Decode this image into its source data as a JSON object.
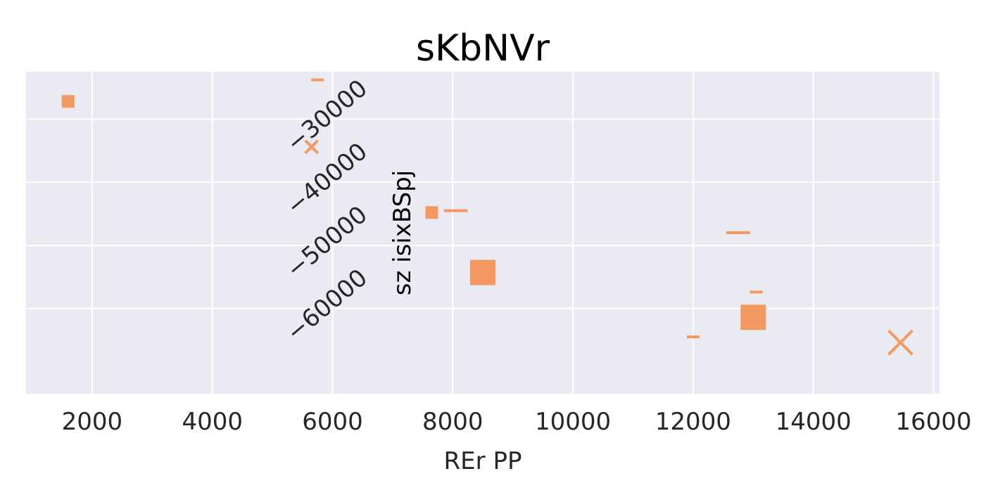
{
  "chart_data": {
    "type": "scatter",
    "title": "sKbNVr",
    "xlabel": "REr PP",
    "ylabel": "sz isixBSpj",
    "xlim": [
      900,
      16100
    ],
    "ylim": [
      -73500,
      -22500
    ],
    "xticks": [
      2000,
      4000,
      6000,
      8000,
      10000,
      12000,
      14000,
      16000
    ],
    "xtick_labels": [
      "2000",
      "4000",
      "6000",
      "8000",
      "10000",
      "12000",
      "14000",
      "16000"
    ],
    "yticks": [
      -30000,
      -40000,
      -50000,
      -60000
    ],
    "ytick_labels": [
      "−30000",
      "−40000",
      "−50000",
      "−60000"
    ],
    "grid": true,
    "background": "#eaeaf2",
    "marker_color": "#f29a62",
    "points": [
      {
        "x": 1600,
        "y": -27200,
        "marker": "square",
        "size": 18
      },
      {
        "x": 5750,
        "y": -23800,
        "marker": "hline",
        "size": 18
      },
      {
        "x": 5650,
        "y": -34400,
        "marker": "x",
        "size": 18
      },
      {
        "x": 7650,
        "y": -44800,
        "marker": "square",
        "size": 18
      },
      {
        "x": 8050,
        "y": -44500,
        "marker": "hline",
        "size": 34
      },
      {
        "x": 12750,
        "y": -48000,
        "marker": "hline",
        "size": 34
      },
      {
        "x": 8500,
        "y": -54300,
        "marker": "square",
        "size": 36
      },
      {
        "x": 13050,
        "y": -57400,
        "marker": "hline",
        "size": 18
      },
      {
        "x": 13000,
        "y": -61400,
        "marker": "square",
        "size": 36
      },
      {
        "x": 12000,
        "y": -64500,
        "marker": "hline",
        "size": 18
      },
      {
        "x": 15450,
        "y": -65400,
        "marker": "x",
        "size": 34
      }
    ]
  }
}
